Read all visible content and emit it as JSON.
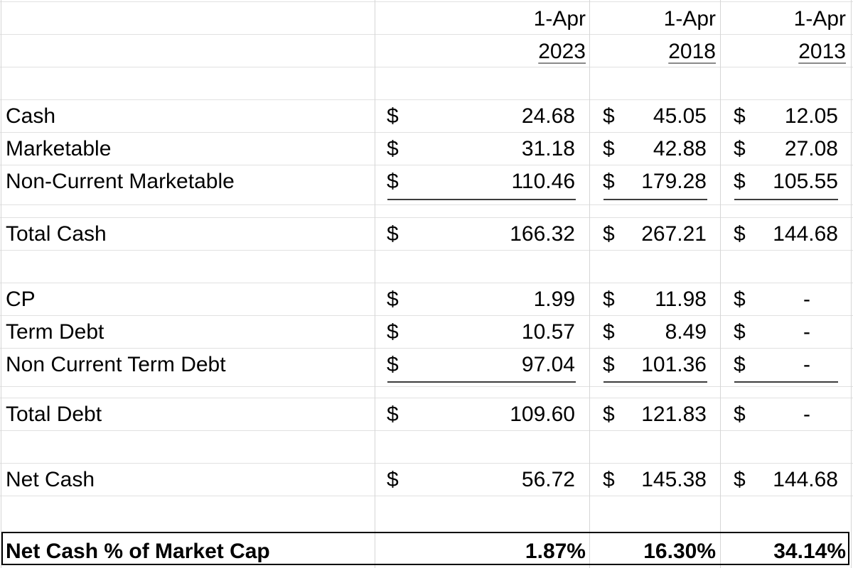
{
  "headers": {
    "month": [
      "1-Apr",
      "1-Apr",
      "1-Apr"
    ],
    "year": [
      "2023",
      "2018",
      "2013"
    ]
  },
  "currency_symbol": "$",
  "rows": [
    {
      "label": "Cash",
      "v2023": "24.68",
      "v2018": "45.05",
      "v2013": "12.05"
    },
    {
      "label": "Marketable",
      "v2023": "31.18",
      "v2018": "42.88",
      "v2013": "27.08"
    },
    {
      "label": "Non-Current Marketable",
      "v2023": "110.46",
      "v2018": "179.28",
      "v2013": "105.55"
    },
    {
      "label": "Total Cash",
      "v2023": "166.32",
      "v2018": "267.21",
      "v2013": "144.68"
    },
    {
      "label": "CP",
      "v2023": "1.99",
      "v2018": "11.98",
      "v2013": "-"
    },
    {
      "label": "Term Debt",
      "v2023": "10.57",
      "v2018": "8.49",
      "v2013": "-"
    },
    {
      "label": "Non Current Term Debt",
      "v2023": "97.04",
      "v2018": "101.36",
      "v2013": "-"
    },
    {
      "label": "Total Debt",
      "v2023": "109.60",
      "v2018": "121.83",
      "v2013": "-"
    },
    {
      "label": "Net Cash",
      "v2023": "56.72",
      "v2018": "145.38",
      "v2013": "144.68"
    }
  ],
  "summary": {
    "label": "Net Cash % of Market Cap",
    "v2023": "1.87%",
    "v2018": "16.30%",
    "v2013": "34.14%"
  }
}
